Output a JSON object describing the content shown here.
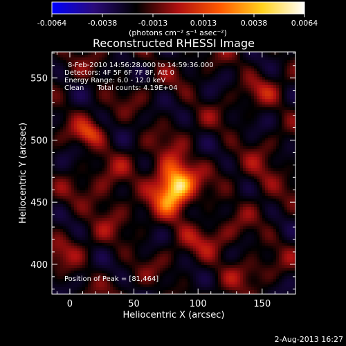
{
  "chart_data": {
    "type": "heatmap",
    "title": "Reconstructed RHESSI Image",
    "xlabel": "Heliocentric X (arcsec)",
    "ylabel": "Heliocentric Y (arcsec)",
    "x_ticks": [
      0,
      50,
      100,
      150
    ],
    "y_ticks": [
      400,
      450,
      500,
      550
    ],
    "xlim": [
      -14,
      176
    ],
    "ylim": [
      376,
      571
    ],
    "colorbar": {
      "ticks": [
        "-0.0064",
        "-0.0038",
        "-0.0013",
        "0.0013",
        "0.0038",
        "0.0064"
      ],
      "range": [
        -0.0064,
        0.0064
      ],
      "unit": "(photons cm⁻² s⁻¹ asec⁻²)",
      "colors": [
        "#0000ff",
        "#2a0a7a",
        "#000000",
        "#b01010",
        "#ff5a00",
        "#ffd21e",
        "#ffffff"
      ]
    },
    "annotations": [
      "8-Feb-2010 14:56:28.000 to 14:59:36.000",
      "Detectors: 4F 5F 6F 7F 8F, Att 0",
      "Energy Range: 6.0 - 12.0 keV",
      "Clean      Total counts: 4.19E+04"
    ],
    "peak_label": "Position of Peak = [81,464]",
    "peak": [
      81,
      464
    ],
    "footer": "2-Aug-2013 16:27",
    "sources": [
      {
        "x": 81,
        "y": 464,
        "value": 0.0064,
        "sx": 11,
        "sy": 15
      },
      {
        "x": 15,
        "y": 505,
        "value": 0.0028,
        "sx": 8,
        "sy": 7
      },
      {
        "x": 150,
        "y": 540,
        "value": 0.0012,
        "sx": 10,
        "sy": 8
      },
      {
        "x": 150,
        "y": 470,
        "value": 0.0015,
        "sx": 10,
        "sy": 10
      },
      {
        "x": 30,
        "y": 455,
        "value": 0.0014,
        "sx": 12,
        "sy": 18
      },
      {
        "x": 110,
        "y": 420,
        "value": 0.0013,
        "sx": 18,
        "sy": 10
      },
      {
        "x": -5,
        "y": 410,
        "value": 0.0011,
        "sx": 10,
        "sy": 10
      },
      {
        "x": 140,
        "y": 395,
        "value": 0.0011,
        "sx": 14,
        "sy": 8
      }
    ]
  }
}
